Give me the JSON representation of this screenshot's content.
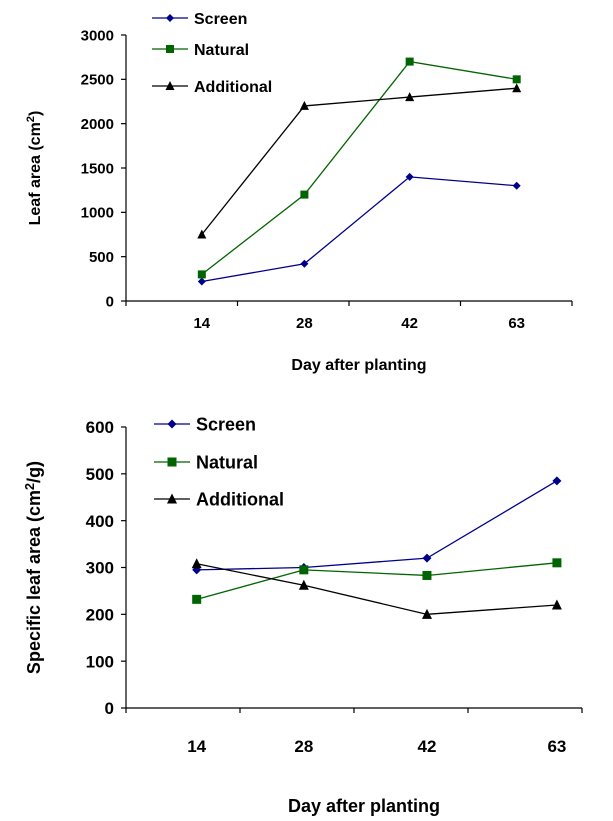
{
  "chart_data": [
    {
      "type": "line",
      "title": "",
      "categories": [
        "14",
        "28",
        "42",
        "63"
      ],
      "xlabel": "Day after planting",
      "ylabel_main": "Leaf area (cm",
      "ylabel_sup": "2",
      "ylabel_tail": ")",
      "ylim": [
        0,
        3000
      ],
      "yticks": [
        "0",
        "500",
        "1000",
        "1500",
        "2000",
        "2500",
        "3000"
      ],
      "grid": false,
      "legend_position": "top-left",
      "series": [
        {
          "name": "Screen",
          "values": [
            220,
            420,
            1400,
            1300
          ],
          "color": "#00008b",
          "marker": "diamond"
        },
        {
          "name": "Natural",
          "values": [
            300,
            1200,
            2700,
            2500
          ],
          "color": "#006400",
          "marker": "square"
        },
        {
          "name": "Additional",
          "values": [
            750,
            2200,
            2300,
            2400
          ],
          "color": "#000000",
          "marker": "triangle"
        }
      ]
    },
    {
      "type": "line",
      "title": "",
      "categories": [
        "14",
        "28",
        "42",
        "63"
      ],
      "xlabel": "Day after planting",
      "ylabel_main": "Specific leaf area (cm",
      "ylabel_sup": "2",
      "ylabel_tail": "/g)",
      "ylim": [
        0,
        600
      ],
      "yticks": [
        "0",
        "100",
        "200",
        "300",
        "400",
        "500",
        "600"
      ],
      "grid": false,
      "legend_position": "top-left",
      "series": [
        {
          "name": "Screen",
          "values": [
            295,
            300,
            320,
            485
          ],
          "color": "#00008b",
          "marker": "diamond"
        },
        {
          "name": "Natural",
          "values": [
            232,
            295,
            283,
            310
          ],
          "color": "#006400",
          "marker": "square"
        },
        {
          "name": "Additional",
          "values": [
            308,
            262,
            200,
            220
          ],
          "color": "#000000",
          "marker": "triangle"
        }
      ]
    }
  ]
}
